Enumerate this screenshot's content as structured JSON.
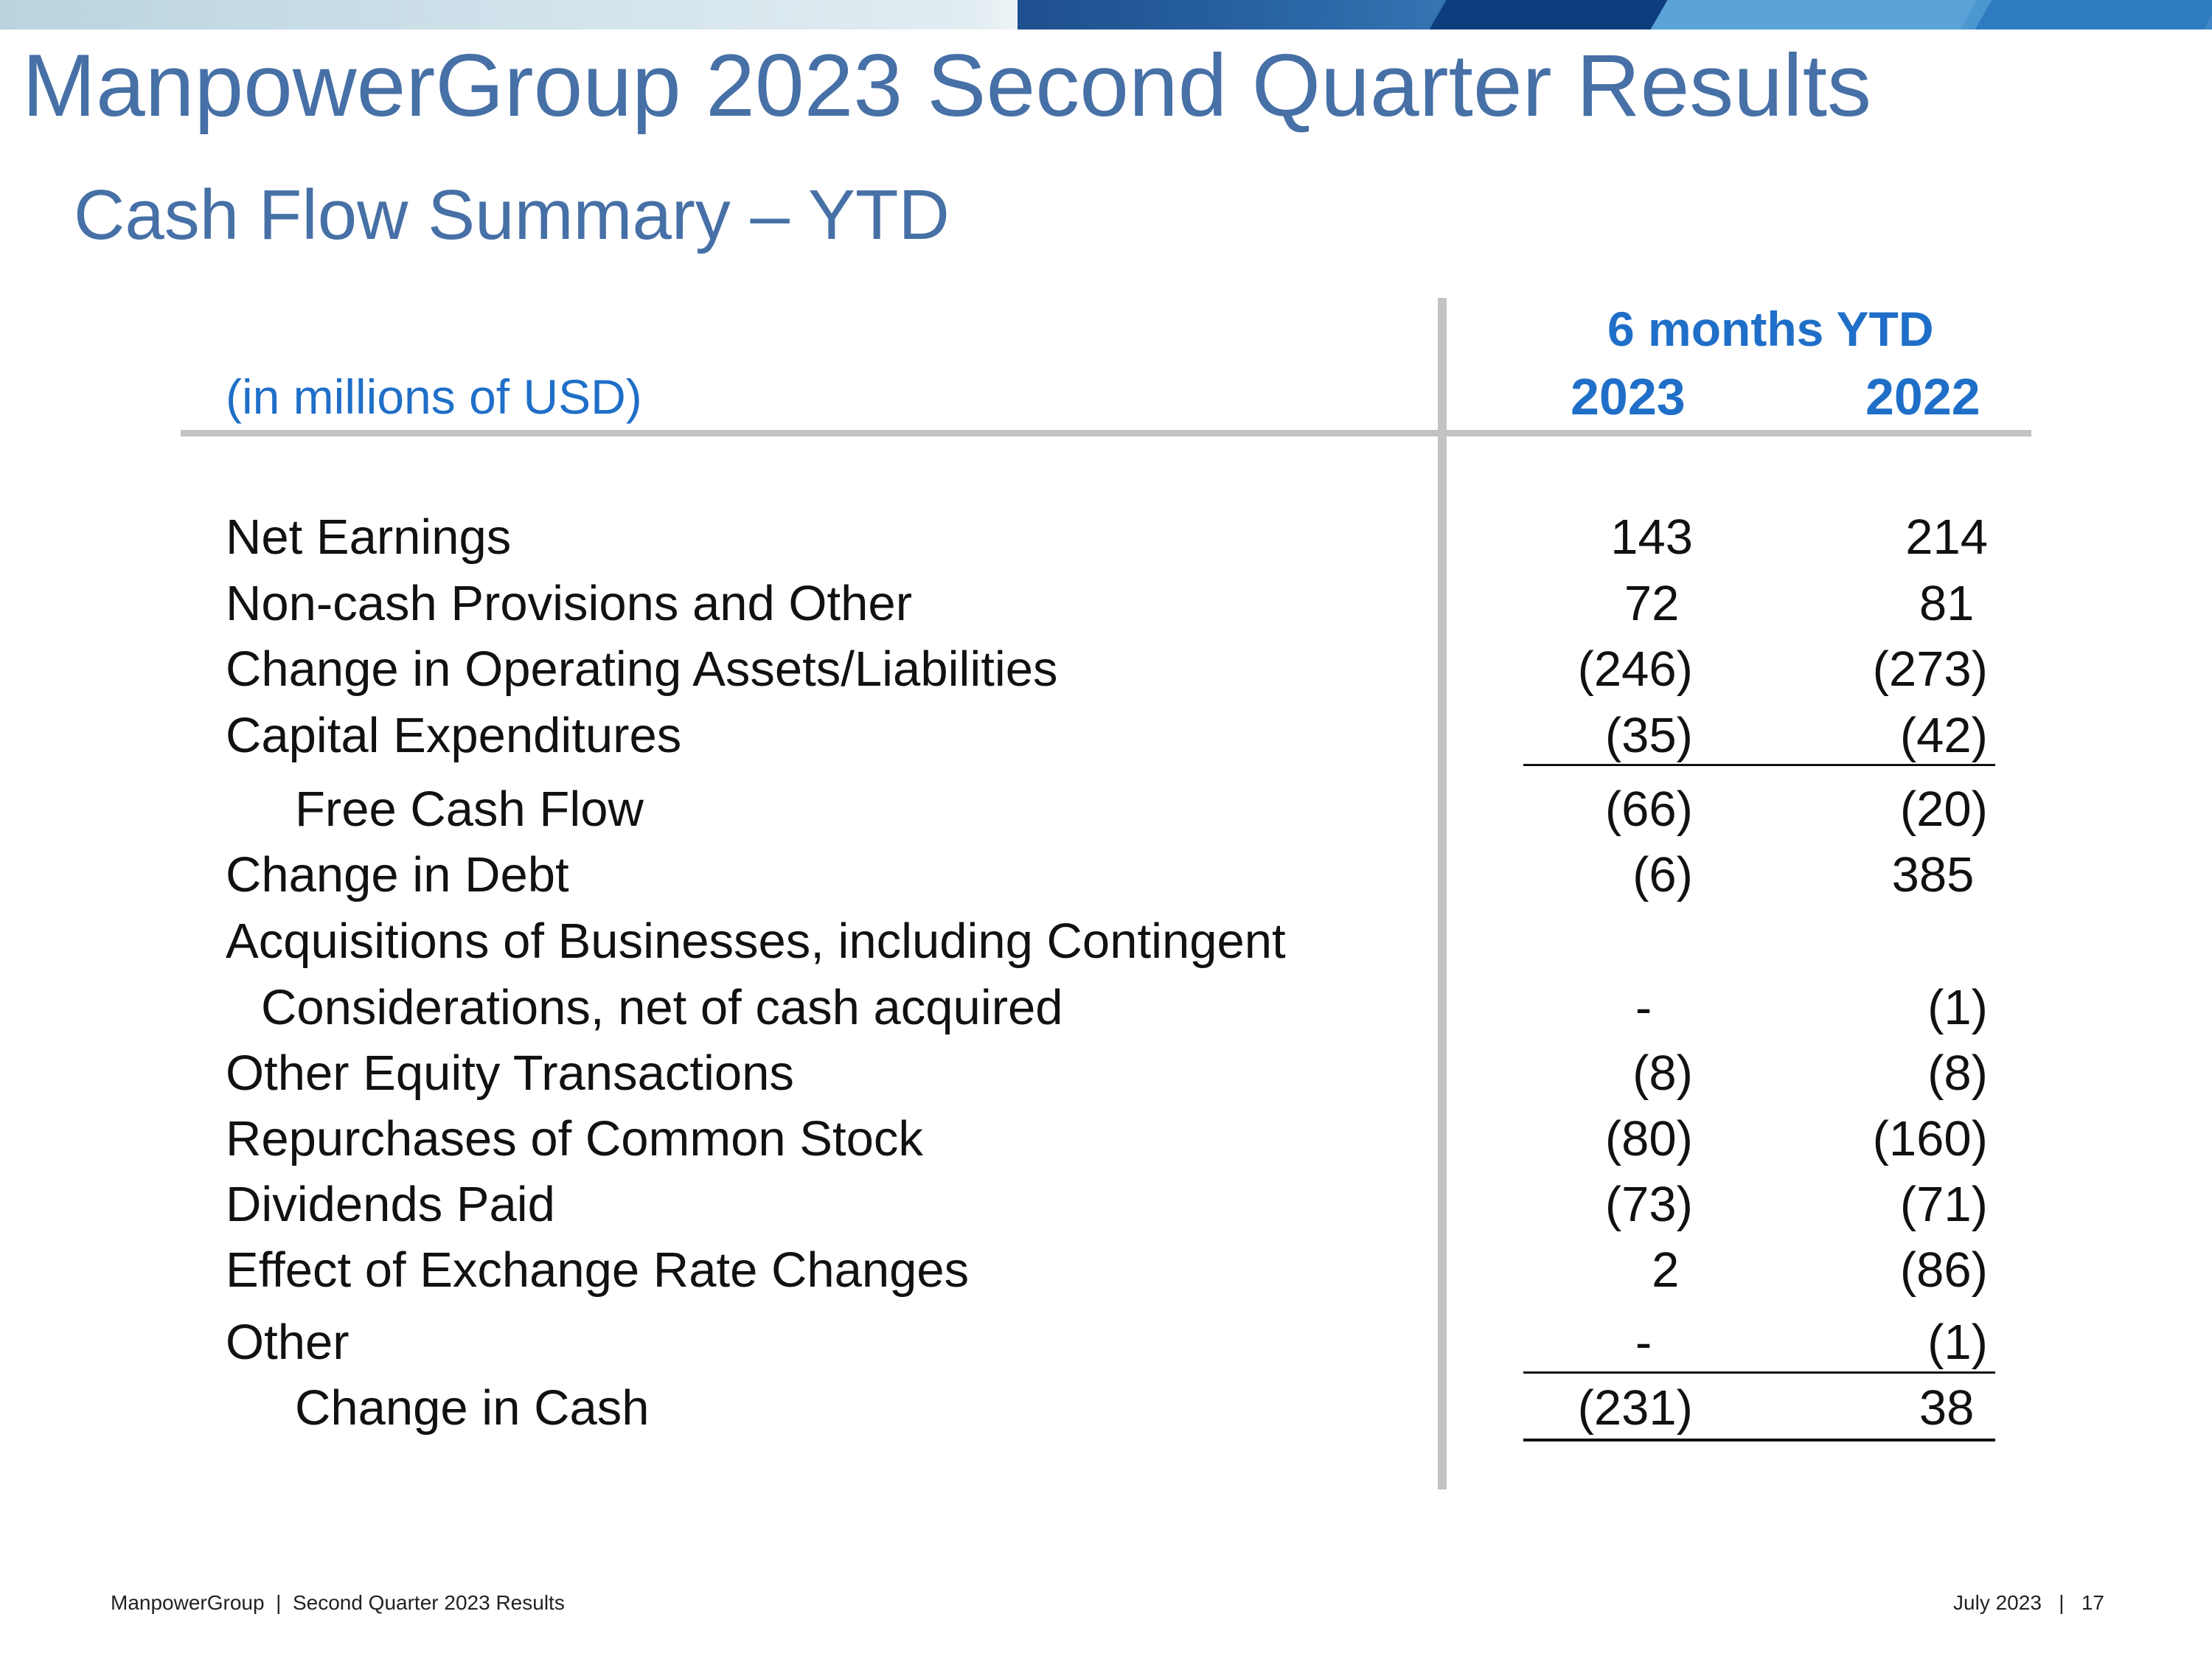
{
  "slide": {
    "title": "ManpowerGroup 2023 Second Quarter Results",
    "subtitle": "Cash Flow Summary – YTD"
  },
  "table": {
    "units_label": "(in millions of USD)",
    "column_group": "6 months YTD",
    "columns": [
      "2023",
      "2022"
    ],
    "rows": [
      {
        "label": "Net Earnings",
        "y2023": "143",
        "y2022": "214"
      },
      {
        "label": "Non-cash Provisions and Other",
        "y2023": "72 ",
        "y2022": "81 "
      },
      {
        "label": "Change in Operating Assets/Liabilities",
        "y2023": "(246)",
        "y2022": "(273)"
      },
      {
        "label": "Capital Expenditures",
        "y2023": "(35)",
        "y2022": "(42)"
      },
      {
        "label": "Free Cash Flow",
        "y2023": "(66)",
        "y2022": "(20)"
      },
      {
        "label": "Change in Debt",
        "y2023": "(6)",
        "y2022": "385 "
      },
      {
        "label": "Acquisitions of Businesses, including Contingent",
        "y2023": "",
        "y2022": ""
      },
      {
        "label": "Considerations, net of cash acquired",
        "y2023": "-   ",
        "y2022": "(1)"
      },
      {
        "label": "Other Equity Transactions",
        "y2023": "(8)",
        "y2022": "(8)"
      },
      {
        "label": "Repurchases of Common Stock",
        "y2023": "(80)",
        "y2022": "(160)"
      },
      {
        "label": "Dividends Paid",
        "y2023": "(73)",
        "y2022": "(71)"
      },
      {
        "label": "Effect of Exchange Rate Changes",
        "y2023": "2 ",
        "y2022": "(86)"
      },
      {
        "label": "Other",
        "y2023": "-   ",
        "y2022": "(1)"
      },
      {
        "label": "Change in Cash",
        "y2023": "(231)",
        "y2022": "38 "
      }
    ]
  },
  "footer": {
    "left": "ManpowerGroup  |  Second Quarter 2023 Results",
    "right": "July 2023   |   17"
  },
  "colors": {
    "title_blue": "#4670a6",
    "header_blue": "#1f6fc8",
    "rule_gray": "#c3c3c3"
  }
}
